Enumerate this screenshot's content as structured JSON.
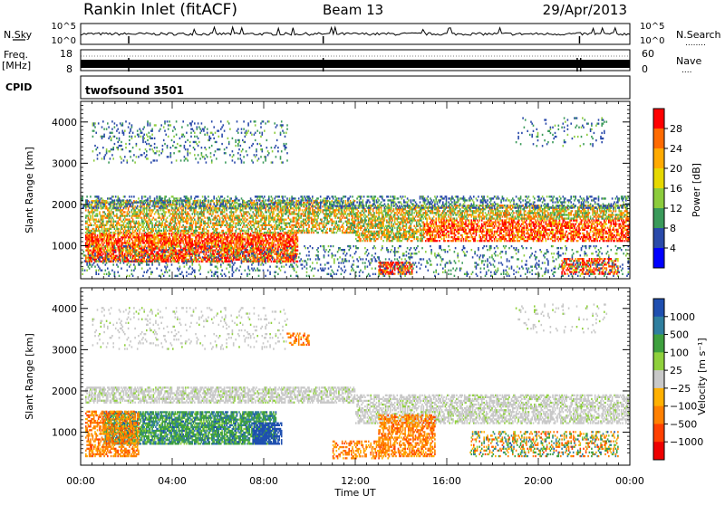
{
  "header": {
    "station": "Rankin Inlet (fitACF)",
    "beam": "Beam 13",
    "date": "29/Apr/2013"
  },
  "noise_panel": {
    "left_label": "N.Sky",
    "right_label": "N.Search",
    "right_dots": "........",
    "y_ticks": [
      "10^5",
      "10^0"
    ]
  },
  "freq_panel": {
    "left_label_1": "Freq.",
    "left_label_2": "[MHz]",
    "right_label": "Nave",
    "right_dots": "....",
    "left_ticks": [
      "18",
      "8"
    ],
    "right_ticks": [
      "60",
      "0"
    ]
  },
  "cpid_panel": {
    "label": "CPID",
    "program": "twofsound 3501"
  },
  "chart_data": [
    {
      "type": "heatmap",
      "name": "power",
      "ylabel": "Slant Range [km]",
      "ylim": [
        200,
        4500
      ],
      "xlim_hours": [
        0,
        24
      ],
      "y_ticks": [
        "4000",
        "3000",
        "2000",
        "1000"
      ],
      "colorbar": {
        "label": "Power [dB]",
        "ticks": [
          "28",
          "24",
          "20",
          "16",
          "12",
          "8",
          "4"
        ],
        "colors": [
          "#ff0000",
          "#ff6a00",
          "#ffaa00",
          "#e6d800",
          "#8ccc3c",
          "#3a9a5a",
          "#2a4aaa",
          "#0000ff"
        ]
      }
    },
    {
      "type": "heatmap",
      "name": "velocity",
      "ylabel": "Slant Range [km]",
      "ylim": [
        200,
        4500
      ],
      "xlim_hours": [
        0,
        24
      ],
      "y_ticks": [
        "4000",
        "3000",
        "2000",
        "1000"
      ],
      "x_ticks": [
        "00:00",
        "04:00",
        "08:00",
        "12:00",
        "16:00",
        "20:00",
        "00:00"
      ],
      "xlabel": "Time UT",
      "colorbar": {
        "label": "Velocity [m s⁻¹]",
        "ticks": [
          "1000",
          "500",
          "100",
          "25",
          "−25",
          "−100",
          "−500",
          "−1000"
        ],
        "colors": [
          "#1f4fb0",
          "#2f7f9f",
          "#3ea03e",
          "#8fd03c",
          "#c8c8c8",
          "#ffb000",
          "#ff8000",
          "#ff4000",
          "#ee0000"
        ]
      }
    }
  ]
}
